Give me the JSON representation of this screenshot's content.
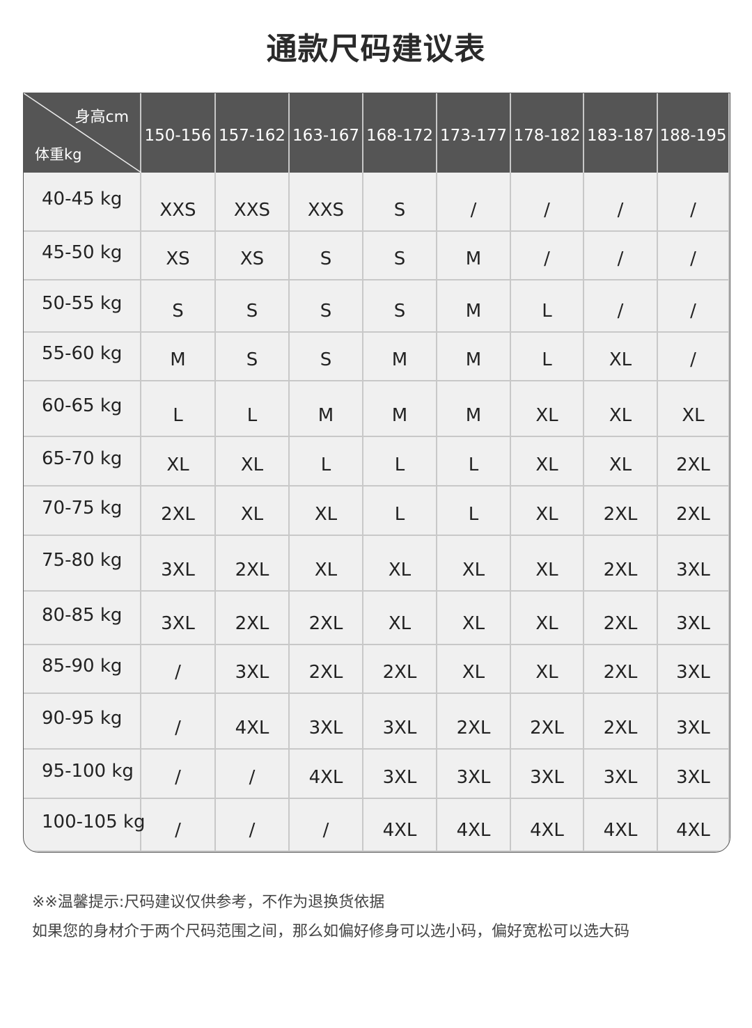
{
  "title": "通款尺码建议表",
  "table": {
    "corner_height_label": "身高cm",
    "corner_weight_label": "体重kg",
    "columns": [
      "150-156",
      "157-162",
      "163-167",
      "168-172",
      "173-177",
      "178-182",
      "183-187",
      "188-195"
    ],
    "rows": [
      {
        "label": "40-45 kg",
        "sizes": [
          "XXS",
          "XXS",
          "XXS",
          "S",
          "/",
          "/",
          "/",
          "/"
        ]
      },
      {
        "label": "45-50 kg",
        "sizes": [
          "XS",
          "XS",
          "S",
          "S",
          "M",
          "/",
          "/",
          "/"
        ]
      },
      {
        "label": "50-55 kg",
        "sizes": [
          "S",
          "S",
          "S",
          "S",
          "M",
          "L",
          "/",
          "/"
        ]
      },
      {
        "label": "55-60 kg",
        "sizes": [
          "M",
          "S",
          "S",
          "M",
          "M",
          "L",
          "XL",
          "/"
        ]
      },
      {
        "label": "60-65 kg",
        "sizes": [
          "L",
          "L",
          "M",
          "M",
          "M",
          "XL",
          "XL",
          "XL"
        ]
      },
      {
        "label": "65-70 kg",
        "sizes": [
          "XL",
          "XL",
          "L",
          "L",
          "L",
          "XL",
          "XL",
          "2XL"
        ]
      },
      {
        "label": "70-75 kg",
        "sizes": [
          "2XL",
          "XL",
          "XL",
          "L",
          "L",
          "XL",
          "2XL",
          "2XL"
        ]
      },
      {
        "label": "75-80 kg",
        "sizes": [
          "3XL",
          "2XL",
          "XL",
          "XL",
          "XL",
          "XL",
          "2XL",
          "3XL"
        ]
      },
      {
        "label": "80-85 kg",
        "sizes": [
          "3XL",
          "2XL",
          "2XL",
          "XL",
          "XL",
          "XL",
          "2XL",
          "3XL"
        ]
      },
      {
        "label": "85-90 kg",
        "sizes": [
          "/",
          "3XL",
          "2XL",
          "2XL",
          "XL",
          "XL",
          "2XL",
          "3XL"
        ]
      },
      {
        "label": "90-95 kg",
        "sizes": [
          "/",
          "4XL",
          "3XL",
          "3XL",
          "2XL",
          "2XL",
          "2XL",
          "3XL"
        ]
      },
      {
        "label": "95-100 kg",
        "sizes": [
          "/",
          "/",
          "4XL",
          "3XL",
          "3XL",
          "3XL",
          "3XL",
          "3XL"
        ]
      },
      {
        "label": "100-105 kg",
        "sizes": [
          "/",
          "/",
          "/",
          "4XL",
          "4XL",
          "4XL",
          "4XL",
          "4XL"
        ]
      }
    ]
  },
  "notes": {
    "line1": "※※温馨提示:尺码建议仅供参考，不作为退换货依据",
    "line2": "如果您的身材介于两个尺码范围之间，那么如偏好修身可以选小码，偏好宽松可以选大码"
  },
  "colors": {
    "header_bg": "#555555",
    "cell_bg": "#f0f0f0",
    "grid": "#c8c8c8"
  }
}
